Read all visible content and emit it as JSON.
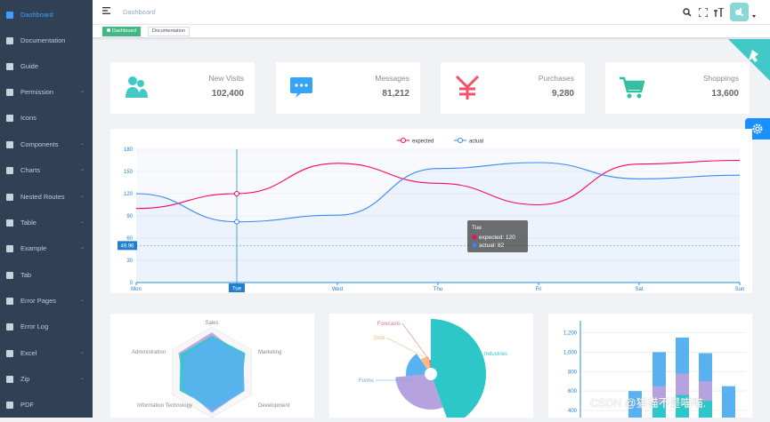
{
  "sidebar": {
    "items": [
      {
        "label": "Dashboard",
        "icon": "dashboard-icon",
        "active": true,
        "sub": false
      },
      {
        "label": "Documentation",
        "icon": "documentation-icon",
        "sub": false
      },
      {
        "label": "Guide",
        "icon": "guide-icon",
        "sub": false
      },
      {
        "label": "Permission",
        "icon": "lock-icon",
        "sub": true
      },
      {
        "label": "Icons",
        "icon": "icons-icon",
        "sub": false
      },
      {
        "label": "Components",
        "icon": "components-icon",
        "sub": true
      },
      {
        "label": "Charts",
        "icon": "chart-icon",
        "sub": true
      },
      {
        "label": "Nested Routes",
        "icon": "nested-icon",
        "sub": true
      },
      {
        "label": "Table",
        "icon": "table-icon",
        "sub": true
      },
      {
        "label": "Example",
        "icon": "example-icon",
        "sub": true
      },
      {
        "label": "Tab",
        "icon": "tab-icon",
        "sub": false
      },
      {
        "label": "Error Pages",
        "icon": "error-pages-icon",
        "sub": true
      },
      {
        "label": "Error Log",
        "icon": "bug-icon",
        "sub": false
      },
      {
        "label": "Excel",
        "icon": "excel-icon",
        "sub": true
      },
      {
        "label": "Zip",
        "icon": "zip-icon",
        "sub": true
      },
      {
        "label": "PDF",
        "icon": "pdf-icon",
        "sub": false
      }
    ]
  },
  "navbar": {
    "breadcrumb": "Dashboard"
  },
  "tags": {
    "items": [
      {
        "label": "Dashboard",
        "active": true
      },
      {
        "label": "Documentation",
        "active": false
      }
    ]
  },
  "panels": [
    {
      "title": "New Visits",
      "value": "102,400",
      "icon": "people-icon",
      "color": "#40c9c6"
    },
    {
      "title": "Messages",
      "value": "81,212",
      "icon": "message-icon",
      "color": "#36a3f7"
    },
    {
      "title": "Purchases",
      "value": "9,280",
      "icon": "money-icon",
      "color": "#f4516c"
    },
    {
      "title": "Shoppings",
      "value": "13,600",
      "icon": "shopping-cart-icon",
      "color": "#34bfa3"
    }
  ],
  "chart_data": [
    {
      "type": "line",
      "legend": [
        "expected",
        "actual"
      ],
      "categories": [
        "Mon",
        "Tue",
        "Wed",
        "Thu",
        "Fri",
        "Sat",
        "Sun"
      ],
      "series": [
        {
          "name": "expected",
          "values": [
            100,
            120,
            161,
            134,
            105,
            160,
            165
          ],
          "color": "#FF005A"
        },
        {
          "name": "actual",
          "values": [
            120,
            82,
            91,
            154,
            162,
            140,
            145
          ],
          "color": "#3888fa"
        }
      ],
      "yticks": [
        0,
        30,
        60,
        90,
        120,
        150,
        180
      ],
      "ylim": [
        0,
        180
      ],
      "tooltip": {
        "title": "Tue",
        "lines": [
          "expected: 120",
          "actual: 82"
        ]
      },
      "crosshair": {
        "x_label": "Tue",
        "y_label": "49.96"
      }
    },
    {
      "type": "radar",
      "indicators": [
        "Sales",
        "Marketing",
        "Development",
        "Information Technology",
        "Administration"
      ]
    },
    {
      "type": "pie",
      "labels": [
        "Industries",
        "Forms",
        "Gold",
        "Forecasts"
      ]
    },
    {
      "type": "bar",
      "yticks": [
        "400",
        "600",
        "800",
        "1,000",
        "1,200"
      ]
    }
  ],
  "watermark": "CSDN @猫猫不是喵喵."
}
